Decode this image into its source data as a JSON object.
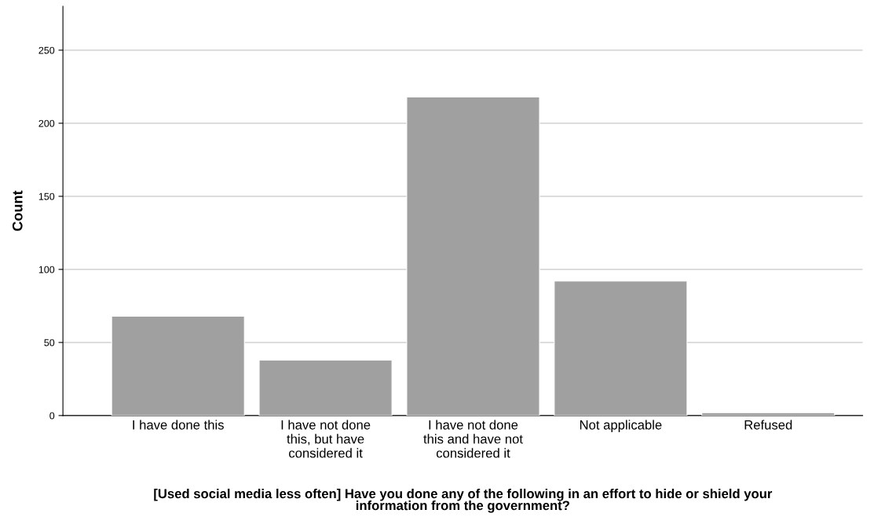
{
  "chart_data": {
    "type": "bar",
    "categories": [
      "I have done this",
      "I have not done\nthis, but have\nconsidered it",
      "I have not done\nthis and have not\nconsidered it",
      "Not applicable",
      "Refused"
    ],
    "values": [
      68,
      38,
      218,
      92,
      2
    ],
    "color": "#a0a0a0",
    "xlabel": "[Used social media less often] Have you done any of the following in an effort to hide or shield your\ninformation from the government?",
    "ylabel": "Count",
    "ylim": [
      0,
      280
    ],
    "yticks": [
      0,
      50,
      100,
      150,
      200,
      250
    ],
    "grid": "y"
  }
}
